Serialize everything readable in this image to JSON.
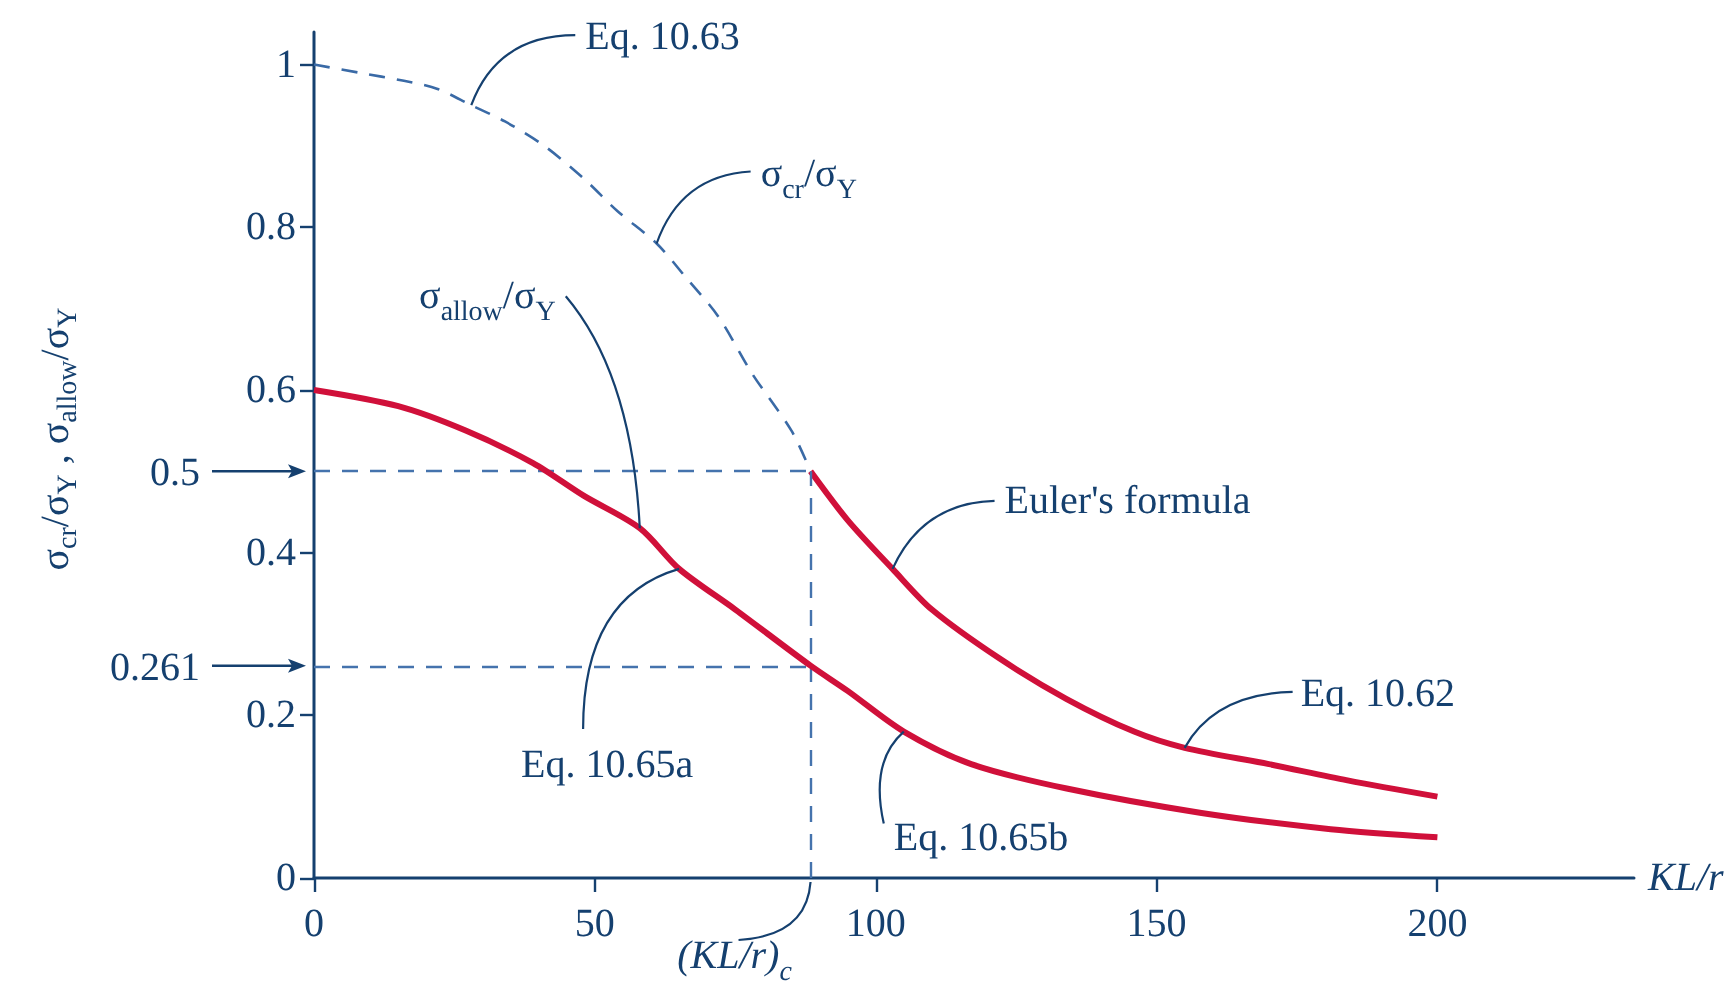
{
  "chart_data": {
    "type": "line",
    "xlabel": "KL/r",
    "ylabel": "σ$_{cr}$/σ$_{Y}$ , σ$_{allow}$/σ$_{Y}$",
    "xlim": [
      0,
      235
    ],
    "xticks": [
      0,
      50,
      100,
      150,
      200
    ],
    "ylim": [
      0,
      1.04
    ],
    "yticks": [
      0,
      0.2,
      0.4,
      0.6,
      0.8,
      1
    ],
    "marker": "none",
    "series": [
      {
        "color": "#3a6aa6",
        "line_style": "dashed",
        "x": [
          0,
          8,
          16,
          22,
          28,
          34,
          41,
          48,
          54,
          61,
          66,
          72,
          78,
          85,
          88.4
        ],
        "values": [
          1,
          0.99,
          0.98,
          0.97,
          0.95,
          0.93,
          0.9,
          0.86,
          0.82,
          0.78,
          0.74,
          0.69,
          0.62,
          0.55,
          0.5
        ]
      },
      {
        "color": "#d0103a",
        "line_style": "solid",
        "x": [
          88.4,
          95,
          103,
          110,
          122,
          134,
          146,
          155,
          170,
          184,
          200
        ],
        "values": [
          0.5,
          0.44,
          0.38,
          0.33,
          0.27,
          0.22,
          0.18,
          0.16,
          0.14,
          0.12,
          0.1
        ]
      },
      {
        "color": "#d0103a",
        "line_style": "solid",
        "x": [
          0,
          15,
          27,
          39,
          48,
          58,
          65,
          75,
          88.4,
          95,
          105,
          117,
          134,
          158,
          181,
          200
        ],
        "values": [
          0.6,
          0.58,
          0.55,
          0.51,
          0.47,
          0.43,
          0.38,
          0.33,
          0.261,
          0.23,
          0.18,
          0.14,
          0.11,
          0.08,
          0.06,
          0.05
        ]
      }
    ],
    "ref_lines": [
      {
        "axis": "y",
        "value": 0.5,
        "label": "0.5",
        "color": "#4573ad",
        "line_style": "dashed"
      },
      {
        "axis": "y",
        "value": 0.261,
        "label": "0.261",
        "color": "#4573ad",
        "line_style": "dashed"
      },
      {
        "axis": "x",
        "value": 88.4,
        "label": "(KL/r)$_{c}$",
        "color": "#4573ad",
        "line_style": "dashed"
      }
    ],
    "annotations": [
      {
        "text": "Eq. 10.63",
        "x": 28,
        "y": 0.95
      },
      {
        "text": "σ$_{cr}$/σ$_{Y}$",
        "x": 61,
        "y": 0.78
      },
      {
        "text": "σ$_{allow}$/σ$_{Y}$",
        "x": 58,
        "y": 0.43
      },
      {
        "text": "Eq. 10.65a",
        "x": 65,
        "y": 0.38
      },
      {
        "text": "Euler's formula",
        "x": 103,
        "y": 0.38
      },
      {
        "text": "Eq. 10.62",
        "x": 155,
        "y": 0.16
      },
      {
        "text": "Eq. 10.65b",
        "x": 105,
        "y": 0.18
      }
    ]
  }
}
